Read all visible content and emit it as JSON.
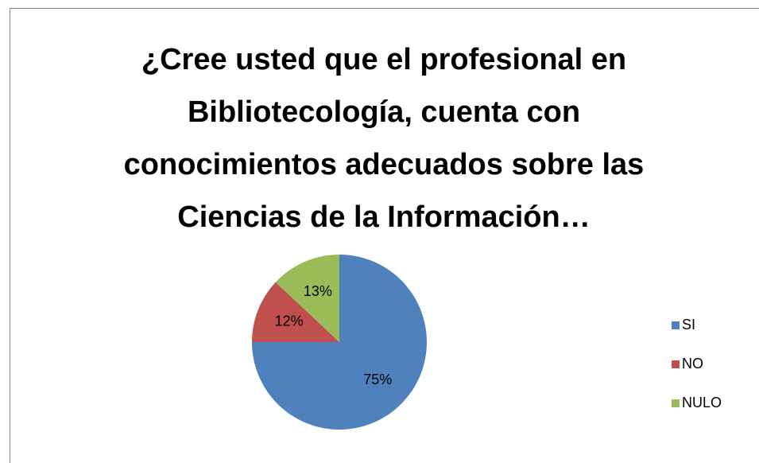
{
  "chart_data": {
    "type": "pie",
    "title": "¿Cree usted que el profesional en\nBibliotecología, cuenta con\nconocimientos adecuados sobre las\nCiencias de la Información…",
    "categories": [
      "SI",
      "NO",
      "NULO"
    ],
    "values": [
      75,
      12,
      13
    ],
    "value_labels": [
      "75%",
      "12%",
      "13%"
    ],
    "colors": [
      "#4f81bd",
      "#c0504d",
      "#9bbb59"
    ],
    "legend": "right"
  }
}
